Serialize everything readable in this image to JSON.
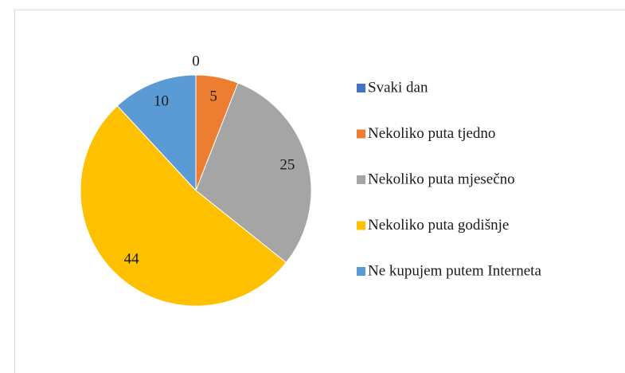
{
  "chart_data": {
    "type": "pie",
    "categories": [
      "Svaki dan",
      "Nekoliko puta tjedno",
      "Nekoliko puta mjesečno",
      "Nekoliko puta godišnje",
      "Ne kupujem putem Interneta"
    ],
    "values": [
      0,
      5,
      25,
      44,
      10
    ],
    "colors": [
      "#4472c4",
      "#ed7d31",
      "#a5a5a5",
      "#ffc000",
      "#5b9bd5"
    ],
    "legend": "right"
  }
}
